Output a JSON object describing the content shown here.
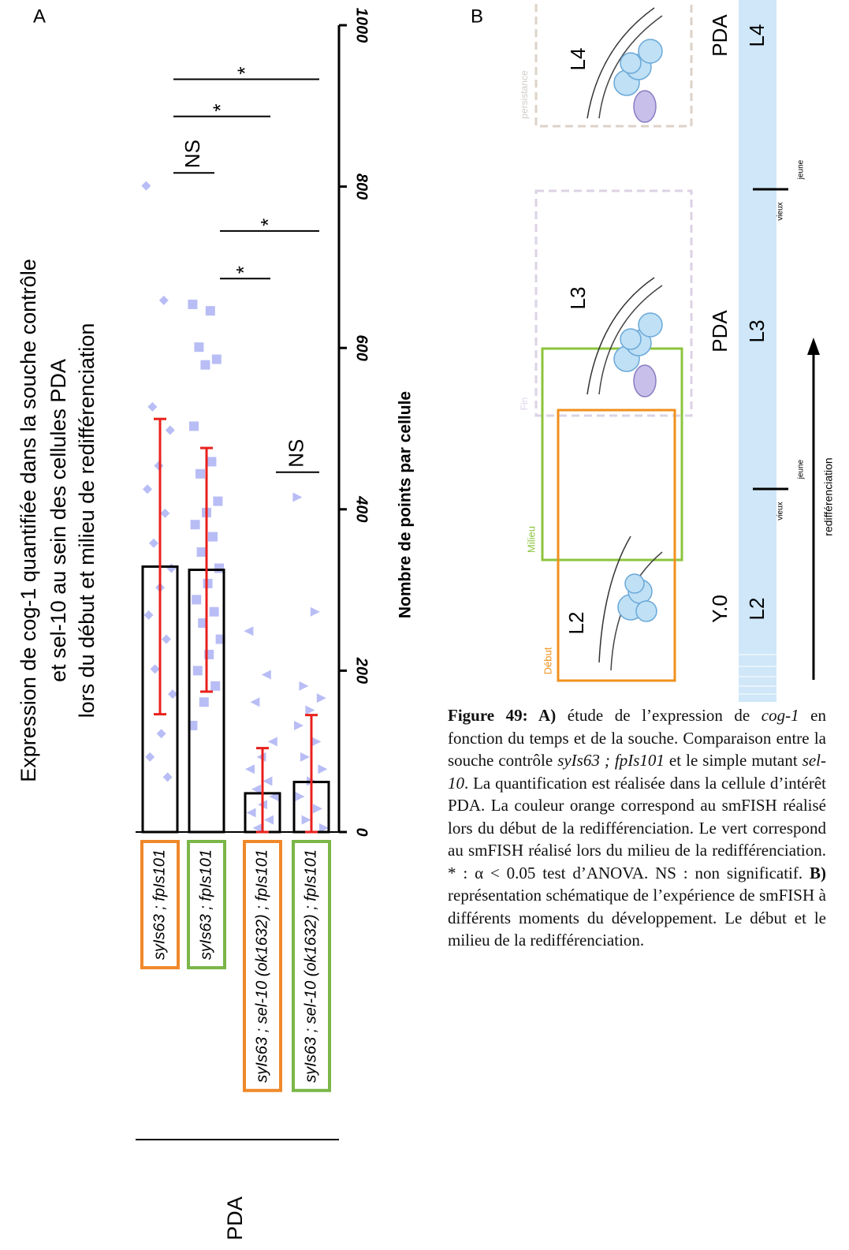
{
  "chart_data": {
    "type": "bar",
    "panel_label": "A",
    "title": [
      "Expression de cog-1 quantifiée dans la souche contrôle",
      "et sel-10 au sein des cellules PDA",
      "lors du début et milieu de redifférenciation"
    ],
    "y_label": "Nombre de points par cellule",
    "categories": [
      "syIs63 ; fpIs101",
      "syIs63 ; fpIs101",
      "syIs63 ; sel-10 (ok1632) ; fpIs101",
      "syIs63 ; sel-10 (ok1632) ; fpIs101"
    ],
    "category_colors": [
      "#f0882a",
      "#7ab648",
      "#f0882a",
      "#7ab648"
    ],
    "values": [
      329,
      325,
      48,
      62
    ],
    "errors": [
      183,
      151,
      56,
      83
    ],
    "bar_color": "#000000",
    "error_color": "#e8201c",
    "points": [
      [
        801,
        659,
        527,
        498,
        454,
        425,
        395,
        358,
        327,
        303,
        269,
        239,
        202,
        171,
        122,
        93,
        68
      ],
      [
        654,
        646,
        601,
        586,
        579,
        503,
        459,
        444,
        410,
        396,
        381,
        366,
        347,
        327,
        308,
        288,
        273,
        259,
        239,
        220,
        200,
        181,
        161,
        132
      ],
      [
        249,
        195,
        161,
        112,
        93,
        78,
        63,
        53,
        44,
        34,
        24,
        15,
        5
      ],
      [
        415,
        273,
        181,
        166,
        151,
        132,
        112,
        93,
        78,
        63,
        44,
        29,
        15,
        5
      ]
    ],
    "point_color": "#b8bdf5",
    "markers": [
      "diamond",
      "square",
      "triangle-left",
      "triangle-right"
    ],
    "ylim": [
      0,
      1000
    ],
    "yticks": [
      0,
      200,
      400,
      600,
      800,
      1000
    ],
    "annotations": [
      {
        "label": "*",
        "from": 0,
        "to": 3,
        "value": 933
      },
      {
        "label": "*",
        "from": 0,
        "to": 2,
        "value": 887
      },
      {
        "label": "NS",
        "from": 0,
        "to": 1,
        "value": 817
      },
      {
        "label": "*",
        "from": 1,
        "to": 3,
        "value": 745
      },
      {
        "label": "*",
        "from": 1,
        "to": 2,
        "value": 686
      },
      {
        "label": "NS",
        "from": 2,
        "to": 3,
        "value": 446
      }
    ],
    "group_label": "PDA"
  },
  "panel_b": {
    "panel_label": "B",
    "boxes": [
      "persistance",
      "Fin",
      "Milieu",
      "Début"
    ],
    "cell_labels": [
      "L4",
      "L3",
      "L2"
    ],
    "stages": [
      {
        "cell": "PDA",
        "larva": "L4"
      },
      {
        "cell": "PDA",
        "larva": "L3"
      },
      {
        "cell": "Y.0",
        "larva": "L2"
      }
    ],
    "transitions": [
      {
        "old": "vieux",
        "young": "jeune"
      },
      {
        "old": "vieux",
        "young": "jeune"
      }
    ],
    "arrow_label": "redifférenciation"
  },
  "caption": [
    {
      "text": "Figure 49: A)",
      "style": "b"
    },
    {
      "text": " étude de l’expression de ",
      "style": "n"
    },
    {
      "text": "cog-1",
      "style": "i"
    },
    {
      "text": " en fonction du temps et de la souche. Comparaison entre la souche contrôle ",
      "style": "n"
    },
    {
      "text": "syIs63 ; fpIs101",
      "style": "i"
    },
    {
      "text": " et le simple mutant ",
      "style": "n"
    },
    {
      "text": "sel-10",
      "style": "i"
    },
    {
      "text": ". La quantification est réalisée dans la cellule d’intérêt PDA. La couleur orange correspond au smFISH réalisé lors du début de la redifférenciation. Le vert correspond au smFISH réalisé lors du milieu de la redifférenciation. * : α < 0.05 test d’ANOVA. NS : non significatif. ",
      "style": "n"
    },
    {
      "text": "B)",
      "style": "b"
    },
    {
      "text": " représentation schématique de l’expérience de smFISH à différents moments du développement. Le début et le milieu de la redifférenciation.",
      "style": "n"
    }
  ]
}
